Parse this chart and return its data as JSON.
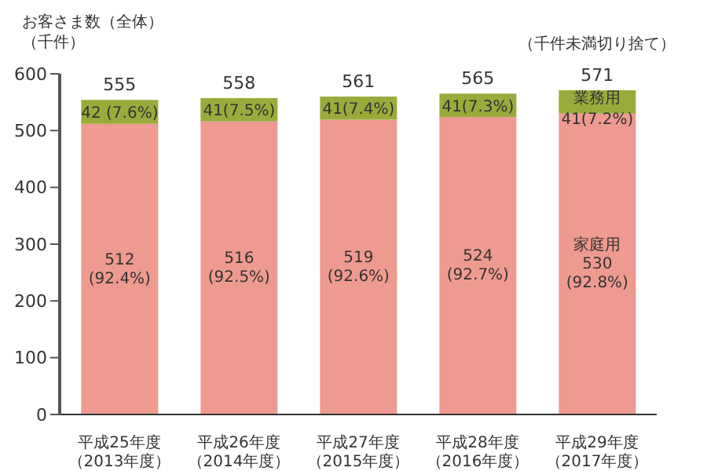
{
  "chart_data": {
    "type": "bar",
    "stacked": true,
    "ylabel": "お客さま数（全体）（千件）",
    "annotations": [
      "（千件未満切り捨て）"
    ],
    "categories": [
      "平成25年度（2013年度）",
      "平成26年度（2014年度）",
      "平成27年度（2015年度）",
      "平成28年度（2016年度）",
      "平成29年度（2017年度）"
    ],
    "series": [
      {
        "name": "家庭用",
        "color": "#ee9a90",
        "values": [
          512,
          516,
          519,
          524,
          530
        ],
        "value_labels": [
          "512\n(92.4%)",
          "516\n(92.5%)",
          "519\n(92.6%)",
          "524\n(92.7%)",
          "530\n(92.8%)"
        ]
      },
      {
        "name": "業務用",
        "color": "#9aab3c",
        "values": [
          42,
          41,
          41,
          41,
          41
        ],
        "value_labels": [
          "42 (7.6%)",
          "41(7.5%)",
          "41(7.4%)",
          "41(7.3%)",
          "41(7.2%)"
        ]
      }
    ],
    "totals": [
      "555",
      "558",
      "561",
      "565",
      "571"
    ],
    "ylim": [
      0,
      600
    ],
    "yticks": [
      0,
      100,
      200,
      300,
      400,
      500,
      600
    ],
    "grid": false
  }
}
